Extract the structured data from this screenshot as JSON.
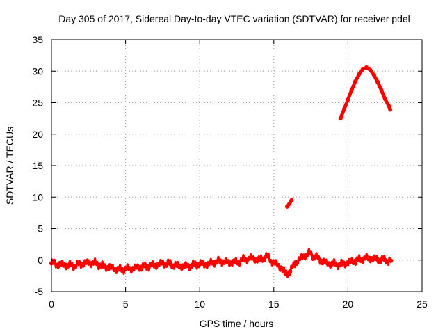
{
  "chart_data": {
    "type": "line",
    "title": "Day 305 of 2017, Sidereal Day-to-day VTEC variation (SDTVAR) for receiver pdel",
    "xlabel": "GPS time / hours",
    "ylabel": "SDTVAR / TECUs",
    "xlim": [
      0,
      25
    ],
    "ylim": [
      -5,
      35
    ],
    "xticks": [
      0,
      5,
      10,
      15,
      20,
      25
    ],
    "yticks": [
      -5,
      0,
      5,
      10,
      15,
      20,
      25,
      30,
      35
    ],
    "grid": true,
    "series": [
      {
        "name": "SDTVAR",
        "color": "#ff0000",
        "segments": [
          {
            "band": [
              [
                0.0,
                -0.5
              ],
              [
                0.5,
                -0.7
              ],
              [
                1.0,
                -0.8
              ],
              [
                1.5,
                -0.9
              ],
              [
                2.0,
                -0.6
              ],
              [
                2.5,
                -0.4
              ],
              [
                3.0,
                -0.5
              ],
              [
                3.5,
                -1.0
              ],
              [
                4.0,
                -1.2
              ],
              [
                4.5,
                -1.5
              ],
              [
                5.0,
                -1.4
              ],
              [
                5.5,
                -1.3
              ],
              [
                6.0,
                -1.1
              ],
              [
                6.5,
                -1.0
              ],
              [
                7.0,
                -0.8
              ],
              [
                7.5,
                -0.5
              ],
              [
                8.0,
                -0.6
              ],
              [
                8.5,
                -0.9
              ],
              [
                9.0,
                -1.0
              ],
              [
                9.5,
                -0.8
              ],
              [
                10.0,
                -0.6
              ],
              [
                10.5,
                -0.7
              ],
              [
                11.0,
                -0.3
              ],
              [
                11.5,
                -0.2
              ],
              [
                12.0,
                -0.4
              ],
              [
                12.5,
                -0.3
              ],
              [
                13.0,
                0.1
              ],
              [
                13.5,
                0.3
              ],
              [
                14.0,
                0.0
              ],
              [
                14.5,
                0.6
              ],
              [
                15.0,
                -0.4
              ],
              [
                15.5,
                -1.2
              ],
              [
                15.8,
                -2.2
              ],
              [
                16.1,
                -1.8
              ],
              [
                16.5,
                -0.3
              ],
              [
                17.0,
                0.6
              ],
              [
                17.4,
                1.1
              ],
              [
                17.8,
                0.5
              ],
              [
                18.2,
                -0.1
              ],
              [
                18.6,
                -0.5
              ],
              [
                19.0,
                -0.6
              ],
              [
                19.5,
                -0.7
              ],
              [
                20.0,
                -0.4
              ],
              [
                20.5,
                -0.1
              ],
              [
                21.0,
                0.2
              ],
              [
                21.5,
                0.3
              ],
              [
                22.0,
                0.1
              ],
              [
                22.5,
                0.0
              ],
              [
                22.9,
                -0.1
              ]
            ]
          },
          {
            "points": [
              [
                15.9,
                8.5
              ],
              [
                16.05,
                8.95
              ],
              [
                16.2,
                9.5
              ]
            ]
          },
          {
            "points": [
              [
                19.5,
                22.5
              ],
              [
                19.75,
                24.0
              ],
              [
                20.0,
                25.5
              ],
              [
                20.25,
                27.0
              ],
              [
                20.5,
                28.4
              ],
              [
                20.75,
                29.5
              ],
              [
                21.0,
                30.3
              ],
              [
                21.25,
                30.6
              ],
              [
                21.5,
                30.2
              ],
              [
                21.75,
                29.4
              ],
              [
                22.0,
                28.3
              ],
              [
                22.25,
                27.0
              ],
              [
                22.5,
                25.6
              ],
              [
                22.75,
                24.5
              ],
              [
                22.85,
                23.9
              ]
            ]
          }
        ]
      }
    ]
  }
}
